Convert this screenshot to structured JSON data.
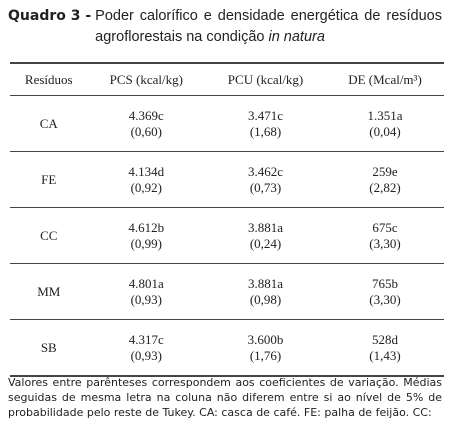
{
  "caption": {
    "label": "Quadro 3 -",
    "text": "Poder calorífico e densidade energética de resíduos agroflorestais na condição",
    "emphasis": "in natura"
  },
  "table": {
    "columns": [
      "Resíduos",
      "PCS (kcal/kg)",
      "PCU (kcal/kg)",
      "DE (Mcal/m³)"
    ],
    "rows": [
      {
        "label": "CA",
        "cells": [
          [
            "4.369c",
            "(0,60)"
          ],
          [
            "3.471c",
            "(1,68)"
          ],
          [
            "1.351a",
            "(0,04)"
          ]
        ]
      },
      {
        "label": "FE",
        "cells": [
          [
            "4.134d",
            "(0,92)"
          ],
          [
            "3.462c",
            "(0,73)"
          ],
          [
            "259e",
            "(2,82)"
          ]
        ]
      },
      {
        "label": "CC",
        "cells": [
          [
            "4.612b",
            "(0,99)"
          ],
          [
            "3.881a",
            "(0,24)"
          ],
          [
            "675c",
            "(3,30)"
          ]
        ]
      },
      {
        "label": "MM",
        "cells": [
          [
            "4.801a",
            "(0,93)"
          ],
          [
            "3.881a",
            "(0,98)"
          ],
          [
            "765b",
            "(3,30)"
          ]
        ]
      },
      {
        "label": "SB",
        "cells": [
          [
            "4.317c",
            "(0,93)"
          ],
          [
            "3.600b",
            "(1,76)"
          ],
          [
            "528d",
            "(1,43)"
          ]
        ]
      }
    ]
  },
  "footnote": "Valores entre parênteses correspondem aos coeficientes de variação. Médias seguidas de mesma letra na coluna não diferem entre si ao nível de 5% de probabilidade pelo reste de Tukey. CA: casca de café. FE: palha de feijão. CC:"
}
